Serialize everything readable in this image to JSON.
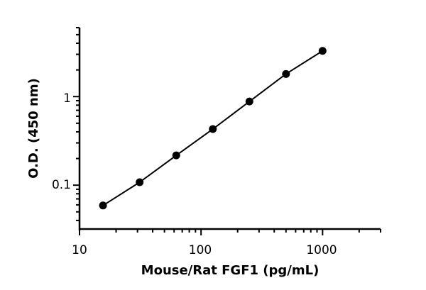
{
  "chart_data": {
    "type": "line",
    "title": "",
    "xlabel": "Mouse/Rat FGF1 (pg/mL)",
    "ylabel": "O.D. (450 nm)",
    "x_scale": "log",
    "y_scale": "log",
    "xlim": [
      10,
      3000
    ],
    "ylim": [
      0.032,
      6
    ],
    "x_ticks": [
      10,
      100,
      1000
    ],
    "x_tick_labels": [
      "10",
      "100",
      "1000"
    ],
    "y_ticks": [
      0.1,
      1
    ],
    "y_tick_labels": [
      "0.1",
      "1"
    ],
    "grid": false,
    "legend": "none",
    "color": "#000000",
    "series": [
      {
        "x": [
          15.6,
          31.25,
          62.5,
          125,
          250,
          500,
          1000
        ],
        "y": [
          0.059,
          0.108,
          0.217,
          0.43,
          0.88,
          1.8,
          3.28
        ]
      }
    ]
  }
}
